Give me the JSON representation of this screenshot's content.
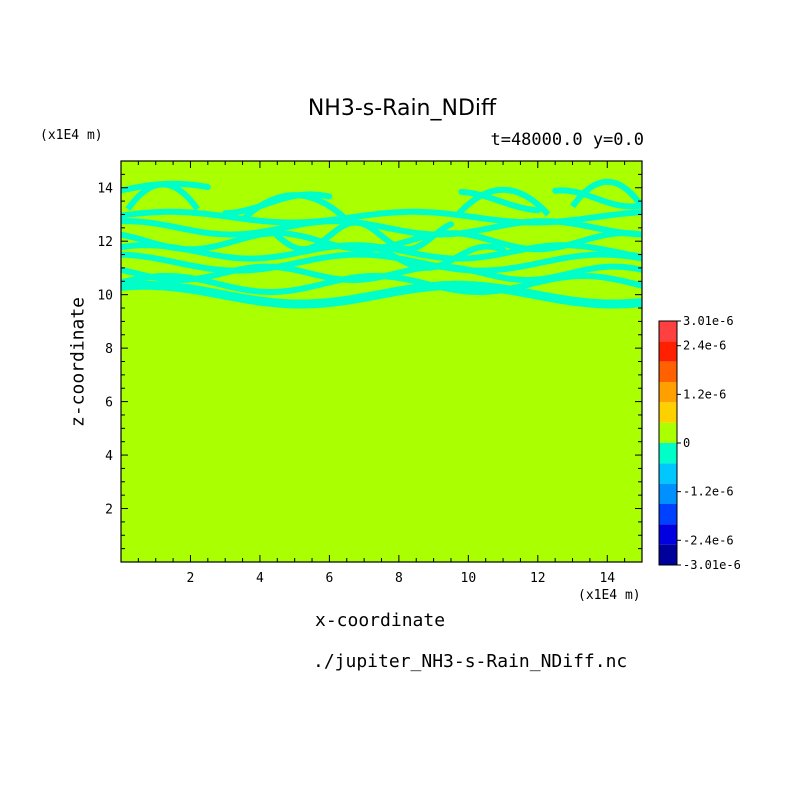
{
  "chart_data": {
    "type": "heatmap",
    "title": "NH3-s-Rain_NDiff",
    "subtitle": "t=48000.0 y=0.0",
    "xlabel": "x-coordinate",
    "ylabel": "z-coordinate",
    "x_unit": "(x1E4 m)",
    "y_unit": "(x1E4 m)",
    "source_file": "./jupiter_NH3-s-Rain_NDiff.nc",
    "xlim": [
      0,
      15
    ],
    "ylim": [
      0,
      15
    ],
    "x_ticks": [
      "2",
      "4",
      "6",
      "8",
      "10",
      "12",
      "14"
    ],
    "y_ticks": [
      "2",
      "4",
      "6",
      "8",
      "10",
      "12",
      "14"
    ],
    "colorbar": {
      "range": [
        -3.01e-06,
        3.01e-06
      ],
      "tick_labels": [
        "3.01e-6",
        "2.4e-6",
        "1.2e-6",
        "0",
        "-1.2e-6",
        "-2.4e-6",
        "-3.01e-6"
      ],
      "colors": [
        "#ff4040",
        "#ff2000",
        "#ff6000",
        "#ffa000",
        "#ffd000",
        "#aaff00",
        "#00ffc8",
        "#00c8ff",
        "#0090ff",
        "#0040ff",
        "#0000e0",
        "#00009a"
      ]
    },
    "background_level_color": "#aaff00",
    "anomaly_level_color": "#00ffc8",
    "anomaly_band_z": [
      9.7,
      14.2
    ],
    "summary_values": {
      "background": 0,
      "band_min_level": -6e-07
    }
  }
}
